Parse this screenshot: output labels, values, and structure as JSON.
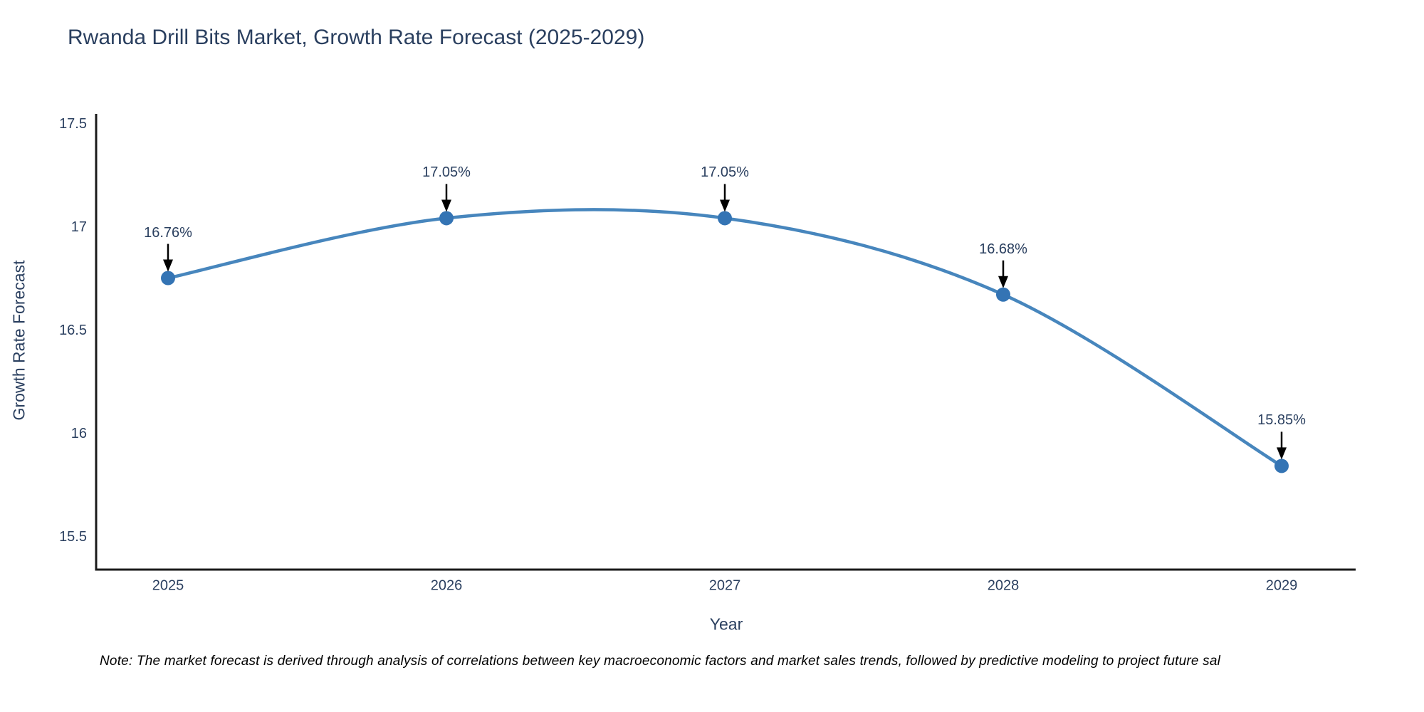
{
  "chart_data": {
    "type": "line",
    "title": "Rwanda Drill Bits Market, Growth Rate Forecast (2025-2029)",
    "xlabel": "Year",
    "ylabel": "Growth Rate Forecast",
    "categories": [
      "2025",
      "2026",
      "2027",
      "2028",
      "2029"
    ],
    "series": [
      {
        "name": "Growth Rate Forecast",
        "values": [
          16.76,
          17.05,
          17.05,
          16.68,
          15.85
        ]
      }
    ],
    "annotations": [
      "16.76%",
      "17.05%",
      "17.05%",
      "16.68%",
      "15.85%"
    ],
    "yticks": [
      15.5,
      16,
      16.5,
      17,
      17.5
    ],
    "yticklabels": [
      "15.5",
      "16",
      "16.5",
      "17",
      "17.5"
    ],
    "ylim": [
      15.348,
      17.555
    ],
    "grid": false,
    "legend_visible": false,
    "line_shape": "spline",
    "colors": {
      "line": "#4786bd",
      "marker": "#3474b4",
      "axis": "#1a1a1a",
      "text": "#2a3f5f",
      "arrow": "#000000",
      "background": "#ffffff"
    },
    "note": "Note: The market forecast is derived through analysis of correlations between key macroeconomic factors and market sales trends, followed by predictive modeling to project future sal"
  }
}
